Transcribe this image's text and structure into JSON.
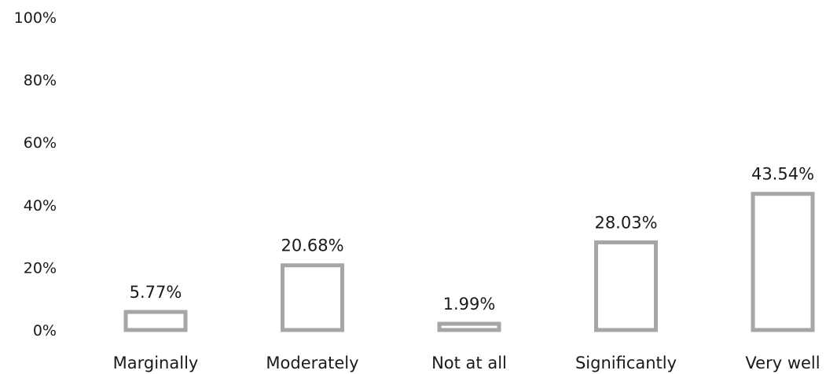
{
  "chart_data": {
    "type": "bar",
    "title": "",
    "xlabel": "",
    "ylabel": "",
    "categories": [
      "Marginally",
      "Moderately",
      "Not at all",
      "Significantly",
      "Very well"
    ],
    "values": [
      5.77,
      20.68,
      1.99,
      28.03,
      43.54
    ],
    "data_labels": [
      "5.77%",
      "20.68%",
      "1.99%",
      "28.03%",
      "43.54%"
    ],
    "y_ticks": [
      0,
      20,
      40,
      60,
      80,
      100
    ],
    "y_tick_labels": [
      "0%",
      "20%",
      "40%",
      "60%",
      "80%",
      "100%"
    ],
    "ylim": [
      0,
      100
    ],
    "grid": false,
    "legend": "none",
    "bar_style": "outline",
    "colors": {
      "bar_stroke": "#a6a6a6",
      "bar_fill": "#ffffff",
      "text": "#1a1a1a"
    }
  }
}
